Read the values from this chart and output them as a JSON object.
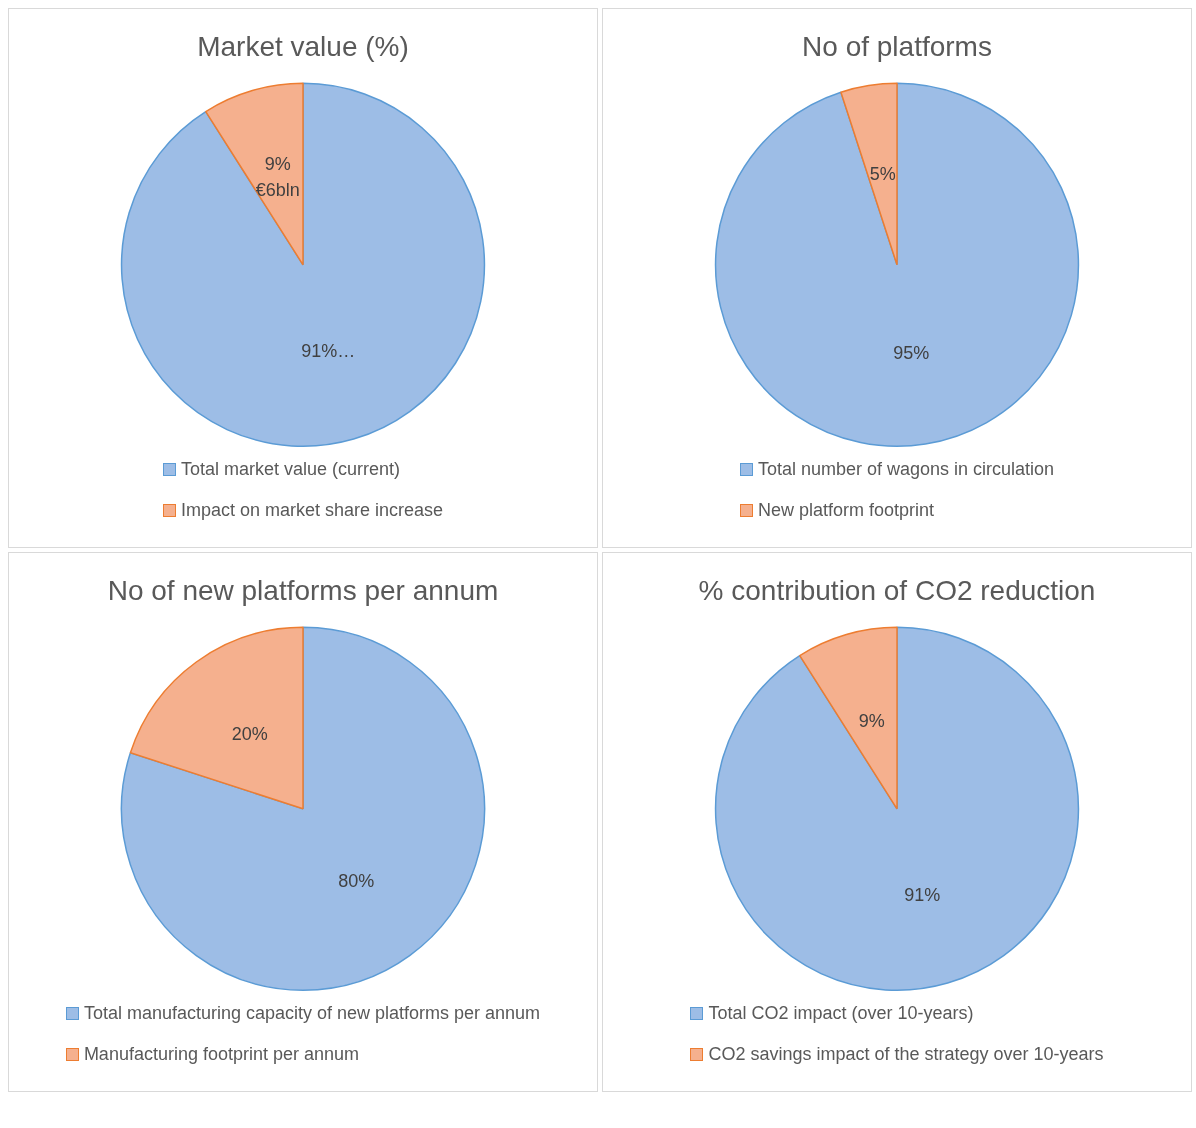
{
  "chart_data": [
    {
      "type": "pie",
      "title": "Market value (%)",
      "categories": [
        "Total market value (current)",
        "Impact on market share increase"
      ],
      "values": [
        91,
        9
      ],
      "colors": [
        "#9dbde6",
        "#f5b08e"
      ],
      "value_labels": [
        "91%…",
        "9%\n€6bln"
      ],
      "legend": "bottom"
    },
    {
      "type": "pie",
      "title": "No of platforms",
      "categories": [
        "Total number of wagons in circulation",
        "New platform footprint"
      ],
      "values": [
        95,
        5
      ],
      "colors": [
        "#9dbde6",
        "#f5b08e"
      ],
      "value_labels": [
        "95%",
        "5%"
      ],
      "legend": "bottom"
    },
    {
      "type": "pie",
      "title": "No of new platforms per annum",
      "categories": [
        "Total manufacturing capacity of new platforms per annum",
        "Manufacturing footprint per annum"
      ],
      "values": [
        80,
        20
      ],
      "colors": [
        "#9dbde6",
        "#f5b08e"
      ],
      "value_labels": [
        "80%",
        "20%"
      ],
      "legend": "bottom"
    },
    {
      "type": "pie",
      "title": "% contribution of CO2 reduction",
      "categories": [
        "Total CO2 impact (over 10-years)",
        "CO2 savings impact of the strategy over 10-years"
      ],
      "values": [
        91,
        9
      ],
      "colors": [
        "#9dbde6",
        "#f5b08e"
      ],
      "value_labels": [
        "91%",
        "9%"
      ],
      "legend": "bottom"
    }
  ]
}
